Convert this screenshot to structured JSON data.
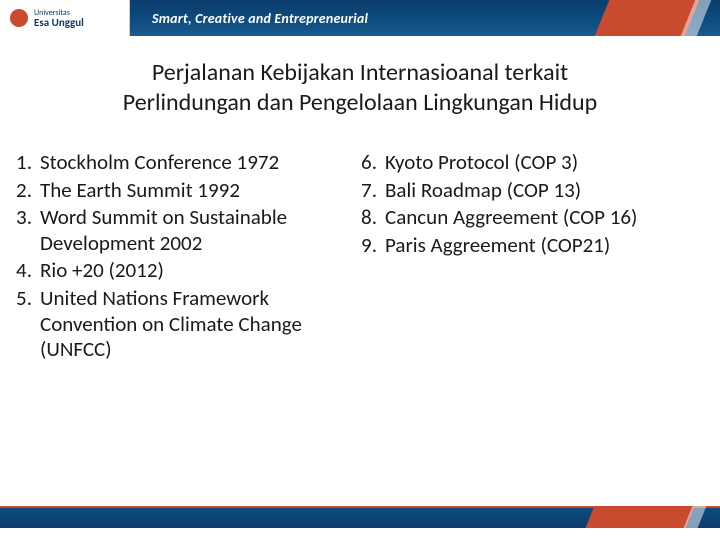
{
  "header": {
    "logo_top": "Universitas",
    "logo_main": "Esa Unggul",
    "tagline": "Smart, Creative and Entrepreneurial"
  },
  "title": {
    "line1": "Perjalanan Kebijakan Internasioanal terkait",
    "line2": "Perlindungan dan Pengelolaan Lingkungan Hidup"
  },
  "left_list": [
    {
      "n": "1.",
      "t": "Stockholm Conference 1972"
    },
    {
      "n": "2.",
      "t": "The Earth Summit 1992"
    },
    {
      "n": "3.",
      "t": "Word Summit on Sustainable Development 2002"
    },
    {
      "n": "4.",
      "t": "Rio +20 (2012)"
    },
    {
      "n": "5.",
      "t": "United Nations Framework Convention on Climate Change (UNFCC)"
    }
  ],
  "right_list": [
    {
      "n": "6.",
      "t": " Kyoto Protocol (COP 3)"
    },
    {
      "n": "7.",
      "t": "Bali Roadmap (COP 13)"
    },
    {
      "n": "8.",
      "t": "Cancun Aggreement (COP 16)"
    },
    {
      "n": "9.",
      "t": "Paris Aggreement (COP21)"
    }
  ],
  "colors": {
    "brand_blue": "#0a3d6b",
    "brand_orange": "#c94a2e",
    "text": "#1a1a1a",
    "bg": "#ffffff"
  }
}
